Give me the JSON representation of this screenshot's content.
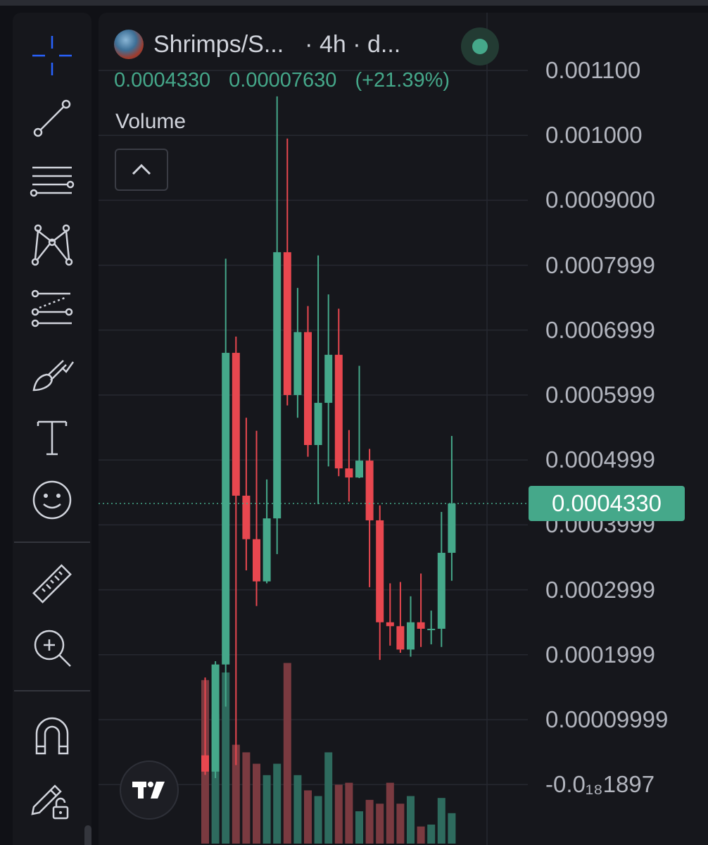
{
  "colors": {
    "up": "#45a88a",
    "down": "#e8474f",
    "up_volume": "#2e6b5e",
    "down_volume": "#7a3a40",
    "price_line": "#45a88a",
    "grid": "#262830",
    "icon": "#d1d4dc",
    "crosshair_icon": "#2962ff"
  },
  "header": {
    "symbol": "Shrimps/S...",
    "interval_text": "· 4h · d...",
    "live_indicator": "green-dot",
    "last_price": "0.0004330",
    "change": "0.00007630",
    "change_percent": "(+21.39%)",
    "indicator_label": "Volume"
  },
  "toolbar": {
    "tools": [
      {
        "icon": "crosshair-icon",
        "active": true
      },
      {
        "icon": "trend-line-icon"
      },
      {
        "icon": "horizontal-lines-icon"
      },
      {
        "icon": "pattern-icon"
      },
      {
        "icon": "forecast-icon"
      },
      {
        "icon": "brush-icon"
      },
      {
        "icon": "text-icon"
      },
      {
        "icon": "emoji-icon"
      },
      {
        "icon": "ruler-icon"
      },
      {
        "icon": "zoom-in-icon"
      },
      {
        "icon": "magnet-icon"
      },
      {
        "icon": "lock-drawing-icon"
      }
    ]
  },
  "chart_data": {
    "type": "candlestick",
    "series": [
      {
        "name": "Price",
        "style": "candlestick"
      },
      {
        "name": "Volume",
        "style": "bar"
      }
    ],
    "price_axis": {
      "ticks": [
        "0.001100",
        "0.001000",
        "0.0009000",
        "0.0007999",
        "0.0006999",
        "0.0005999",
        "0.0004999",
        "0.0003999",
        "0.0002999",
        "0.0001999",
        "0.00009999"
      ],
      "tick_values": [
        0.0011,
        0.001,
        0.0009,
        0.0008,
        0.0007,
        0.0006,
        0.0005,
        0.0004,
        0.0003,
        0.0002,
        0.0001
      ],
      "bottom_label": "-0.0₁₈1897",
      "ylim": [
        0.0,
        0.00112
      ]
    },
    "last_price_label": "0.0004330",
    "last_price": 0.000433,
    "candles": [
      {
        "o": 4.5e-05,
        "h": 0.000165,
        "l": 1.5e-05,
        "c": 2e-05
      },
      {
        "o": 2e-05,
        "h": 0.00019,
        "l": 1e-05,
        "c": 0.000185
      },
      {
        "o": 0.000185,
        "h": 0.00081,
        "l": 0.00012,
        "c": 0.000665
      },
      {
        "o": 0.000665,
        "h": 0.00069,
        "l": 3e-05,
        "c": 0.000445
      },
      {
        "o": 0.000445,
        "h": 0.000565,
        "l": 0.00033,
        "c": 0.000378
      },
      {
        "o": 0.000378,
        "h": 0.000545,
        "l": 0.000275,
        "c": 0.000313
      },
      {
        "o": 0.000313,
        "h": 0.00047,
        "l": 0.00031,
        "c": 0.00041
      },
      {
        "o": 0.00041,
        "h": 0.00106,
        "l": 0.000355,
        "c": 0.00082
      },
      {
        "o": 0.00082,
        "h": 0.000995,
        "l": 0.000584,
        "c": 0.0006
      },
      {
        "o": 0.0006,
        "h": 0.000765,
        "l": 0.000565,
        "c": 0.000697
      },
      {
        "o": 0.000697,
        "h": 0.000737,
        "l": 0.000505,
        "c": 0.000523
      },
      {
        "o": 0.000523,
        "h": 0.000815,
        "l": 0.000432,
        "c": 0.000588
      },
      {
        "o": 0.000588,
        "h": 0.000755,
        "l": 0.00049,
        "c": 0.000662
      },
      {
        "o": 0.000662,
        "h": 0.000733,
        "l": 0.000475,
        "c": 0.000487
      },
      {
        "o": 0.000487,
        "h": 0.000546,
        "l": 0.000436,
        "c": 0.000473
      },
      {
        "o": 0.000473,
        "h": 0.000645,
        "l": 0.000472,
        "c": 0.000499
      },
      {
        "o": 0.000499,
        "h": 0.000517,
        "l": 0.000304,
        "c": 0.000407
      },
      {
        "o": 0.000407,
        "h": 0.00043,
        "l": 0.000192,
        "c": 0.00025
      },
      {
        "o": 0.00025,
        "h": 0.00031,
        "l": 0.000214,
        "c": 0.000244
      },
      {
        "o": 0.000244,
        "h": 0.000312,
        "l": 0.000203,
        "c": 0.000208
      },
      {
        "o": 0.000208,
        "h": 0.00029,
        "l": 0.000197,
        "c": 0.00025
      },
      {
        "o": 0.00025,
        "h": 0.000325,
        "l": 0.000212,
        "c": 0.00024
      },
      {
        "o": 0.00024,
        "h": 0.000268,
        "l": 0.000216,
        "c": 0.00024
      },
      {
        "o": 0.00024,
        "h": 0.00042,
        "l": 0.000212,
        "c": 0.000357
      },
      {
        "o": 0.000357,
        "h": 0.000537,
        "l": 0.000314,
        "c": 0.000433
      }
    ],
    "volumes": [
      0.86,
      0.68,
      0.9,
      0.52,
      0.48,
      0.42,
      0.36,
      0.42,
      0.95,
      0.36,
      0.28,
      0.25,
      0.48,
      0.31,
      0.32,
      0.17,
      0.23,
      0.21,
      0.32,
      0.21,
      0.25,
      0.09,
      0.1,
      0.24,
      0.16
    ]
  }
}
